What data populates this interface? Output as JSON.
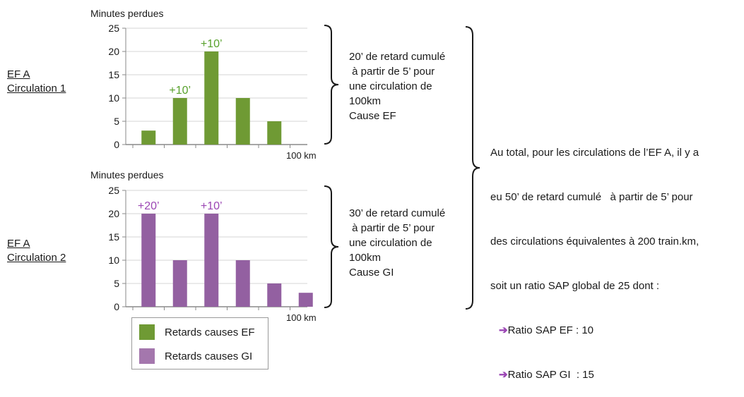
{
  "rows": [
    {
      "label_line1": "EF A",
      "label_line2": "Circulation 1"
    },
    {
      "label_line1": "EF A",
      "label_line2": "Circulation  2"
    }
  ],
  "chart_data": [
    {
      "type": "bar",
      "ylabel": "Minutes perdues",
      "xlabel": "100 km",
      "ylim": [
        0,
        25
      ],
      "yticks": [
        0,
        5,
        10,
        15,
        20,
        25
      ],
      "grid": "horizontal",
      "series": [
        {
          "name": "Retards causes EF",
          "values": [
            3,
            10,
            20,
            10,
            5
          ]
        }
      ],
      "annotations": [
        {
          "bar_index": 1,
          "text": "+10’"
        },
        {
          "bar_index": 2,
          "text": "+10’"
        }
      ]
    },
    {
      "type": "bar",
      "ylabel": "Minutes perdues",
      "xlabel": "100 km",
      "ylim": [
        0,
        25
      ],
      "yticks": [
        0,
        5,
        10,
        15,
        20,
        25
      ],
      "grid": "horizontal",
      "series": [
        {
          "name": "Retards causes GI",
          "values": [
            20,
            10,
            20,
            10,
            5,
            3
          ]
        }
      ],
      "annotations": [
        {
          "bar_index": 0,
          "text": "+20’"
        },
        {
          "bar_index": 2,
          "text": "+10’"
        }
      ]
    }
  ],
  "notes": [
    {
      "lines": [
        "20’ de retard cumulé",
        " à partir de 5’ pour",
        "une circulation de",
        "100km",
        "Cause EF"
      ]
    },
    {
      "lines": [
        "30’ de retard cumulé",
        " à partir de 5’ pour",
        "une circulation de",
        "100km",
        "Cause GI"
      ]
    }
  ],
  "summary": {
    "lines": [
      "Au total, pour les circulations de l’EF A, il y a",
      "eu 50’ de retard cumulé   à partir de 5’ pour",
      "des circulations équivalentes à 200 train.km,",
      "soit un ratio SAP global de 25 dont :"
    ],
    "ratio_ef": "Ratio SAP EF : 10",
    "ratio_gi": "Ratio SAP GI  : 15",
    "arrow": "➔"
  },
  "legend": [
    {
      "label": "Retards causes EF",
      "color": "#6f9a34"
    },
    {
      "label": "Retards causes GI",
      "color": "#a477ad"
    }
  ],
  "colors": {
    "ef_bar": "#6f9a34",
    "gi_bar": "#9360a1",
    "ef_annot": "#58a12c",
    "gi_annot": "#9b46b4",
    "grid": "#d6d6d6",
    "axis": "#8a8a8a",
    "brace": "#1a1a1a"
  }
}
